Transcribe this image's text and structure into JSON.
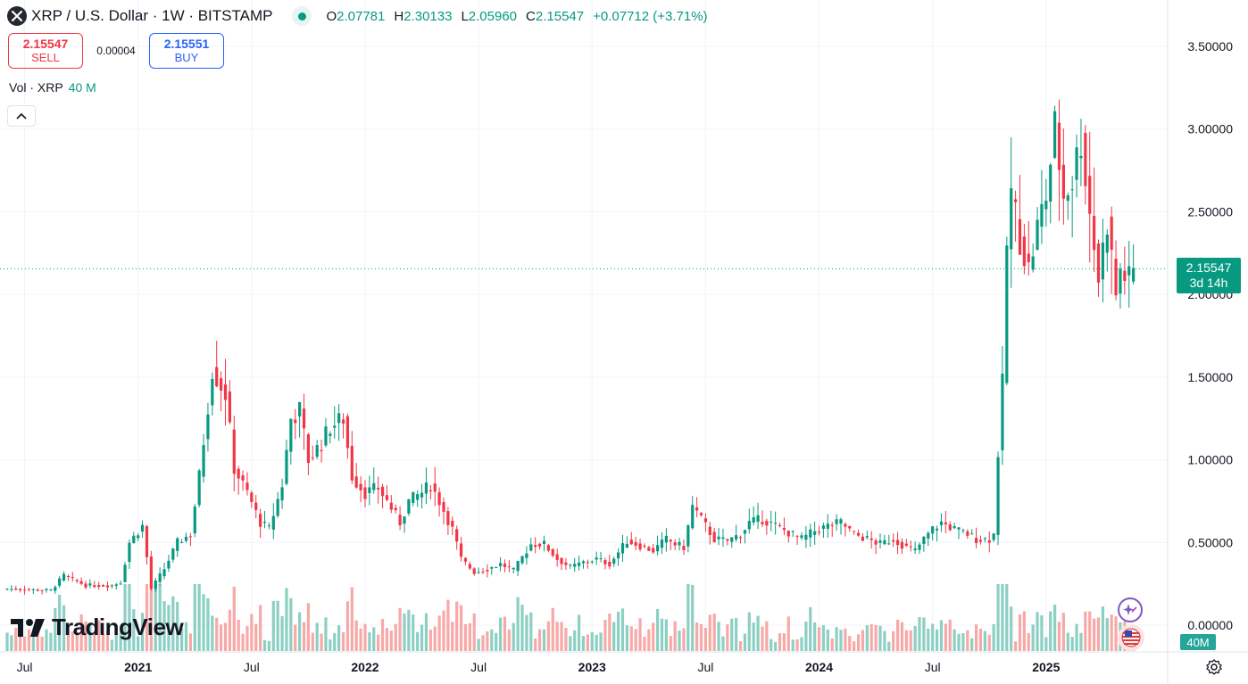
{
  "header": {
    "title": "XRP / U.S. Dollar · 1W · BITSTAMP",
    "ohlc": [
      {
        "k": "O",
        "v": "2.07781"
      },
      {
        "k": "H",
        "v": "2.30133"
      },
      {
        "k": "L",
        "v": "2.05960"
      },
      {
        "k": "C",
        "v": "2.15547"
      }
    ],
    "change": "+0.07712 (+3.71%)"
  },
  "trade": {
    "sell_price": "2.15547",
    "sell_label": "SELL",
    "spread": "0.00004",
    "buy_price": "2.15551",
    "buy_label": "BUY"
  },
  "volume_legend": {
    "label": "Vol · XRP",
    "value": "40 M"
  },
  "logo_text": "TradingView",
  "price_tag": {
    "price": "2.15547",
    "countdown": "3d 14h"
  },
  "volume_tag": "40M",
  "colors": {
    "up": "#089981",
    "down": "#f23645",
    "up_vol": "#8ccfc3",
    "down_vol": "#f7a9a7"
  },
  "chart_data": {
    "type": "candlestick",
    "title": "XRP / U.S. Dollar · 1W · BITSTAMP",
    "ylim": [
      0,
      3.6
    ],
    "y_ticks": [
      {
        "value": 0,
        "label": "0.00000"
      },
      {
        "value": 0.5,
        "label": "0.50000"
      },
      {
        "value": 1.0,
        "label": "1.00000"
      },
      {
        "value": 1.5,
        "label": "1.50000"
      },
      {
        "value": 2.0,
        "label": "2.00000"
      },
      {
        "value": 2.5,
        "label": "2.50000"
      },
      {
        "value": 3.0,
        "label": "3.00000"
      },
      {
        "value": 3.5,
        "label": "3.50000"
      }
    ],
    "x_ticks": [
      {
        "week": 4,
        "label": "Jul",
        "bold": false
      },
      {
        "week": 30,
        "label": "2021",
        "bold": true
      },
      {
        "week": 56,
        "label": "Jul",
        "bold": false
      },
      {
        "week": 82,
        "label": "2022",
        "bold": true
      },
      {
        "week": 108,
        "label": "Jul",
        "bold": false
      },
      {
        "week": 134,
        "label": "2023",
        "bold": true
      },
      {
        "week": 160,
        "label": "Jul",
        "bold": false
      },
      {
        "week": 186,
        "label": "2024",
        "bold": true
      },
      {
        "week": 212,
        "label": "Jul",
        "bold": false
      },
      {
        "week": 238,
        "label": "2025",
        "bold": true
      }
    ],
    "last_price": 2.15547,
    "anchors": [
      [
        0,
        0.22
      ],
      [
        10,
        0.21
      ],
      [
        13,
        0.3
      ],
      [
        18,
        0.24
      ],
      [
        24,
        0.24
      ],
      [
        26,
        0.26
      ],
      [
        28,
        0.5
      ],
      [
        31,
        0.6
      ],
      [
        33,
        0.22
      ],
      [
        36,
        0.34
      ],
      [
        39,
        0.5
      ],
      [
        42,
        0.55
      ],
      [
        44,
        0.9
      ],
      [
        47,
        1.55
      ],
      [
        50,
        1.4
      ],
      [
        52,
        0.95
      ],
      [
        55,
        0.8
      ],
      [
        58,
        0.62
      ],
      [
        60,
        0.58
      ],
      [
        63,
        0.85
      ],
      [
        65,
        1.25
      ],
      [
        67,
        1.3
      ],
      [
        69,
        1.0
      ],
      [
        72,
        1.1
      ],
      [
        74,
        1.2
      ],
      [
        77,
        1.25
      ],
      [
        79,
        0.9
      ],
      [
        82,
        0.8
      ],
      [
        85,
        0.83
      ],
      [
        87,
        0.75
      ],
      [
        90,
        0.62
      ],
      [
        92,
        0.75
      ],
      [
        95,
        0.8
      ],
      [
        97,
        0.85
      ],
      [
        99,
        0.75
      ],
      [
        102,
        0.58
      ],
      [
        104,
        0.4
      ],
      [
        107,
        0.32
      ],
      [
        110,
        0.34
      ],
      [
        113,
        0.37
      ],
      [
        116,
        0.33
      ],
      [
        120,
        0.49
      ],
      [
        123,
        0.49
      ],
      [
        126,
        0.4
      ],
      [
        129,
        0.35
      ],
      [
        132,
        0.38
      ],
      [
        135,
        0.4
      ],
      [
        138,
        0.37
      ],
      [
        142,
        0.51
      ],
      [
        145,
        0.48
      ],
      [
        148,
        0.45
      ],
      [
        151,
        0.52
      ],
      [
        153,
        0.49
      ],
      [
        155,
        0.47
      ],
      [
        157,
        0.72
      ],
      [
        159,
        0.64
      ],
      [
        162,
        0.52
      ],
      [
        165,
        0.51
      ],
      [
        168,
        0.55
      ],
      [
        170,
        0.62
      ],
      [
        173,
        0.64
      ],
      [
        176,
        0.6
      ],
      [
        179,
        0.56
      ],
      [
        182,
        0.52
      ],
      [
        185,
        0.57
      ],
      [
        188,
        0.6
      ],
      [
        191,
        0.62
      ],
      [
        194,
        0.55
      ],
      [
        197,
        0.52
      ],
      [
        200,
        0.49
      ],
      [
        203,
        0.52
      ],
      [
        206,
        0.47
      ],
      [
        208,
        0.45
      ],
      [
        210,
        0.52
      ],
      [
        212,
        0.58
      ],
      [
        214,
        0.62
      ],
      [
        217,
        0.58
      ],
      [
        220,
        0.55
      ],
      [
        222,
        0.52
      ],
      [
        225,
        0.52
      ],
      [
        226,
        0.55
      ],
      [
        227,
        1.05
      ],
      [
        228,
        1.45
      ],
      [
        229,
        2.3
      ],
      [
        230,
        2.6
      ],
      [
        232,
        2.35
      ],
      [
        234,
        2.15
      ],
      [
        236,
        2.4
      ],
      [
        238,
        2.6
      ],
      [
        240,
        3.0
      ],
      [
        242,
        2.6
      ],
      [
        244,
        2.7
      ],
      [
        246,
        2.95
      ],
      [
        248,
        2.5
      ],
      [
        250,
        2.1
      ],
      [
        252,
        2.45
      ],
      [
        254,
        2.0
      ],
      [
        255,
        2.15
      ],
      [
        257,
        2.08
      ],
      [
        258,
        2.16
      ]
    ]
  }
}
